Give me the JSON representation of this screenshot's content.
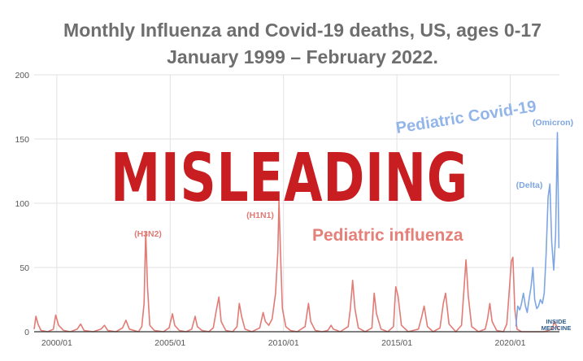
{
  "chart_data": {
    "type": "line",
    "title": "Monthly Influenza and Covid-19 deaths, US, ages 0-17",
    "subtitle": "January 1999 – February 2022.",
    "xlabel": "",
    "ylabel": "",
    "xlim": [
      "1999-01",
      "2022-02"
    ],
    "ylim": [
      0,
      200
    ],
    "y_ticks": [
      0,
      50,
      100,
      150,
      200
    ],
    "x_ticks": [
      {
        "label": "2000/01",
        "value": 2000.0
      },
      {
        "label": "2005/01",
        "value": 2005.0
      },
      {
        "label": "2010/01",
        "value": 2010.0
      },
      {
        "label": "2015/01",
        "value": 2015.0
      },
      {
        "label": "2020/01",
        "value": 2020.0
      }
    ],
    "grid": true,
    "series": [
      {
        "name": "Pediatric influenza",
        "color": "#e27b75",
        "points": [
          [
            1999.0,
            2
          ],
          [
            1999.08,
            12
          ],
          [
            1999.17,
            6
          ],
          [
            1999.3,
            1
          ],
          [
            1999.6,
            0
          ],
          [
            1999.85,
            2
          ],
          [
            1999.95,
            13
          ],
          [
            2000.08,
            5
          ],
          [
            2000.3,
            1
          ],
          [
            2000.6,
            0
          ],
          [
            2000.9,
            2
          ],
          [
            2001.05,
            6
          ],
          [
            2001.2,
            1
          ],
          [
            2001.6,
            0
          ],
          [
            2001.95,
            2
          ],
          [
            2002.1,
            5
          ],
          [
            2002.25,
            1
          ],
          [
            2002.6,
            0
          ],
          [
            2002.9,
            3
          ],
          [
            2003.05,
            9
          ],
          [
            2003.2,
            2
          ],
          [
            2003.6,
            0
          ],
          [
            2003.75,
            4
          ],
          [
            2003.85,
            22
          ],
          [
            2003.92,
            78
          ],
          [
            2004.0,
            35
          ],
          [
            2004.1,
            5
          ],
          [
            2004.3,
            1
          ],
          [
            2004.7,
            0
          ],
          [
            2004.95,
            3
          ],
          [
            2005.1,
            14
          ],
          [
            2005.2,
            5
          ],
          [
            2005.4,
            1
          ],
          [
            2005.7,
            0
          ],
          [
            2005.95,
            2
          ],
          [
            2006.1,
            12
          ],
          [
            2006.2,
            4
          ],
          [
            2006.4,
            1
          ],
          [
            2006.7,
            0
          ],
          [
            2006.9,
            3
          ],
          [
            2007.05,
            18
          ],
          [
            2007.15,
            27
          ],
          [
            2007.25,
            8
          ],
          [
            2007.45,
            1
          ],
          [
            2007.75,
            0
          ],
          [
            2007.95,
            4
          ],
          [
            2008.05,
            22
          ],
          [
            2008.15,
            12
          ],
          [
            2008.3,
            2
          ],
          [
            2008.6,
            0
          ],
          [
            2008.95,
            3
          ],
          [
            2009.1,
            15
          ],
          [
            2009.2,
            8
          ],
          [
            2009.35,
            5
          ],
          [
            2009.5,
            10
          ],
          [
            2009.65,
            30
          ],
          [
            2009.75,
            62
          ],
          [
            2009.8,
            102
          ],
          [
            2009.88,
            55
          ],
          [
            2009.95,
            18
          ],
          [
            2010.1,
            4
          ],
          [
            2010.3,
            1
          ],
          [
            2010.6,
            0
          ],
          [
            2010.95,
            4
          ],
          [
            2011.1,
            22
          ],
          [
            2011.2,
            8
          ],
          [
            2011.4,
            1
          ],
          [
            2011.7,
            0
          ],
          [
            2011.95,
            1
          ],
          [
            2012.1,
            5
          ],
          [
            2012.2,
            2
          ],
          [
            2012.5,
            0
          ],
          [
            2012.85,
            4
          ],
          [
            2012.95,
            18
          ],
          [
            2013.05,
            40
          ],
          [
            2013.15,
            18
          ],
          [
            2013.3,
            3
          ],
          [
            2013.6,
            0
          ],
          [
            2013.9,
            3
          ],
          [
            2014.0,
            30
          ],
          [
            2014.1,
            14
          ],
          [
            2014.3,
            2
          ],
          [
            2014.6,
            0
          ],
          [
            2014.85,
            4
          ],
          [
            2014.95,
            35
          ],
          [
            2015.05,
            28
          ],
          [
            2015.2,
            5
          ],
          [
            2015.5,
            0
          ],
          [
            2015.95,
            2
          ],
          [
            2016.1,
            12
          ],
          [
            2016.2,
            20
          ],
          [
            2016.35,
            4
          ],
          [
            2016.6,
            0
          ],
          [
            2016.9,
            3
          ],
          [
            2017.05,
            22
          ],
          [
            2017.15,
            30
          ],
          [
            2017.3,
            6
          ],
          [
            2017.6,
            0
          ],
          [
            2017.85,
            5
          ],
          [
            2017.95,
            30
          ],
          [
            2018.05,
            56
          ],
          [
            2018.15,
            28
          ],
          [
            2018.3,
            4
          ],
          [
            2018.6,
            0
          ],
          [
            2018.9,
            2
          ],
          [
            2019.0,
            10
          ],
          [
            2019.1,
            22
          ],
          [
            2019.2,
            8
          ],
          [
            2019.4,
            1
          ],
          [
            2019.7,
            0
          ],
          [
            2019.85,
            6
          ],
          [
            2019.95,
            30
          ],
          [
            2020.05,
            55
          ],
          [
            2020.12,
            58
          ],
          [
            2020.2,
            18
          ],
          [
            2020.3,
            2
          ],
          [
            2020.5,
            0
          ],
          [
            2021.0,
            0
          ],
          [
            2021.5,
            0
          ],
          [
            2021.85,
            2
          ],
          [
            2021.95,
            8
          ],
          [
            2022.05,
            4
          ],
          [
            2022.15,
            1
          ]
        ]
      },
      {
        "name": "Pediatric Covid-19",
        "color": "#7da6e3",
        "points": [
          [
            2020.25,
            4
          ],
          [
            2020.33,
            20
          ],
          [
            2020.42,
            17
          ],
          [
            2020.5,
            22
          ],
          [
            2020.58,
            30
          ],
          [
            2020.67,
            20
          ],
          [
            2020.75,
            15
          ],
          [
            2020.83,
            25
          ],
          [
            2020.92,
            35
          ],
          [
            2021.0,
            50
          ],
          [
            2021.08,
            25
          ],
          [
            2021.17,
            18
          ],
          [
            2021.25,
            20
          ],
          [
            2021.33,
            25
          ],
          [
            2021.42,
            22
          ],
          [
            2021.5,
            30
          ],
          [
            2021.58,
            60
          ],
          [
            2021.67,
            105
          ],
          [
            2021.75,
            115
          ],
          [
            2021.83,
            70
          ],
          [
            2021.92,
            48
          ],
          [
            2022.0,
            75
          ],
          [
            2022.08,
            155
          ],
          [
            2022.15,
            65
          ]
        ]
      }
    ],
    "annotations": [
      {
        "text": "(H3N2)",
        "series": "Pediatric influenza"
      },
      {
        "text": "(H1N1)",
        "series": "Pediatric influenza"
      },
      {
        "text": "(Delta)",
        "series": "Pediatric Covid-19"
      },
      {
        "text": "(Omicron)",
        "series": "Pediatric Covid-19"
      }
    ],
    "series_labels": [
      "Pediatric influenza",
      "Pediatric Covid-19"
    ]
  },
  "stamp": {
    "text": "MISLEADING",
    "color": "#c81e22"
  },
  "logo": {
    "line1": "INSIDE",
    "line2": "MEDICINE"
  }
}
